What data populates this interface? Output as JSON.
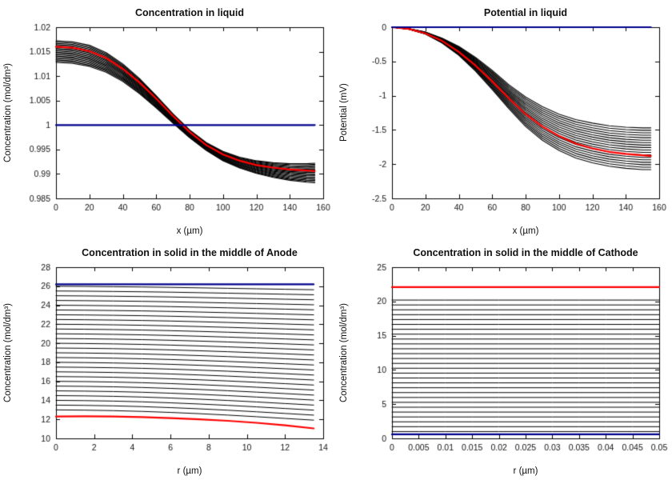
{
  "figure": {
    "background": "#ffffff"
  },
  "chart_data": [
    {
      "id": "concentration-in-liquid",
      "type": "line",
      "title": "Concentration in liquid",
      "xlabel": "x (µm)",
      "ylabel": "Concentration (mol/dm³)",
      "xlim": [
        0,
        160
      ],
      "ylim": [
        0.985,
        1.02
      ],
      "xticks": [
        0,
        20,
        40,
        60,
        80,
        100,
        120,
        140,
        160
      ],
      "xtick_labels": [
        "0",
        "20",
        "40",
        "60",
        "80",
        "100",
        "120",
        "140",
        "160"
      ],
      "yticks": [
        0.985,
        0.99,
        0.995,
        1,
        1.005,
        1.01,
        1.015,
        1.02
      ],
      "ytick_labels": [
        "0.985",
        "0.99",
        "0.995",
        "1",
        "1.005",
        "1.01",
        "1.015",
        "1.02"
      ],
      "x": [
        0,
        10,
        20,
        30,
        40,
        50,
        60,
        70,
        80,
        90,
        100,
        110,
        120,
        130,
        140,
        150,
        155
      ],
      "family": {
        "name": "time-step-curves",
        "color": "#000000",
        "width": 1.1,
        "count": 18,
        "upper": [
          1.0172,
          1.017,
          1.0163,
          1.0148,
          1.0125,
          1.0095,
          1.006,
          1.0023,
          0.999,
          0.9964,
          0.9946,
          0.9934,
          0.9927,
          0.9923,
          0.9921,
          0.9921,
          0.9922
        ],
        "lower": [
          1.0128,
          1.0126,
          1.012,
          1.0108,
          1.0089,
          1.0064,
          1.0035,
          1.0004,
          0.9974,
          0.9948,
          0.9927,
          0.9912,
          0.9901,
          0.9893,
          0.9887,
          0.9883,
          0.9882
        ]
      },
      "series": [
        {
          "name": "red-curve",
          "color": "#ff0000",
          "width": 2.2,
          "y": [
            1.016,
            1.0158,
            1.0151,
            1.0137,
            1.0115,
            1.0087,
            1.0054,
            1.0019,
            0.9986,
            0.9959,
            0.994,
            0.9927,
            0.9918,
            0.9913,
            0.9909,
            0.9907,
            0.9906
          ]
        },
        {
          "name": "blue-line",
          "color": "#00008B",
          "width": 2.2,
          "y": [
            1,
            1,
            1,
            1,
            1,
            1,
            1,
            1,
            1,
            1,
            1,
            1,
            1,
            1,
            1,
            1,
            1
          ]
        }
      ]
    },
    {
      "id": "potential-in-liquid",
      "type": "line",
      "title": "Potential in liquid",
      "xlabel": "x (µm)",
      "ylabel": "Potential (mV)",
      "xlim": [
        0,
        160
      ],
      "ylim": [
        -2.5,
        0
      ],
      "xticks": [
        0,
        20,
        40,
        60,
        80,
        100,
        120,
        140,
        160
      ],
      "xtick_labels": [
        "0",
        "20",
        "40",
        "60",
        "80",
        "100",
        "120",
        "140",
        "160"
      ],
      "yticks": [
        -2.5,
        -2,
        -1.5,
        -1,
        -0.5,
        0
      ],
      "ytick_labels": [
        "-2.5",
        "-2",
        "-1.5",
        "-1",
        "-0.5",
        "0"
      ],
      "x": [
        0,
        10,
        20,
        30,
        40,
        50,
        60,
        70,
        80,
        90,
        100,
        110,
        120,
        130,
        140,
        150,
        155
      ],
      "family": {
        "name": "time-step-curves",
        "color": "#000000",
        "width": 1.1,
        "count": 18,
        "upper": [
          0,
          -0.02,
          -0.07,
          -0.16,
          -0.28,
          -0.44,
          -0.63,
          -0.84,
          -1.02,
          -1.16,
          -1.27,
          -1.35,
          -1.4,
          -1.44,
          -1.46,
          -1.47,
          -1.47
        ],
        "lower": [
          0,
          -0.03,
          -0.1,
          -0.23,
          -0.41,
          -0.64,
          -0.91,
          -1.19,
          -1.45,
          -1.65,
          -1.8,
          -1.91,
          -1.98,
          -2.03,
          -2.06,
          -2.08,
          -2.08
        ]
      },
      "series": [
        {
          "name": "red-curve",
          "color": "#ff0000",
          "width": 2.2,
          "y": [
            0,
            -0.025,
            -0.09,
            -0.2,
            -0.36,
            -0.56,
            -0.79,
            -1.04,
            -1.27,
            -1.45,
            -1.59,
            -1.7,
            -1.77,
            -1.82,
            -1.85,
            -1.87,
            -1.88
          ]
        },
        {
          "name": "blue-line",
          "color": "#00008B",
          "width": 2.2,
          "y": [
            0,
            0,
            0,
            0,
            0,
            0,
            0,
            0,
            0,
            0,
            0,
            0,
            0,
            0,
            0,
            0,
            0
          ]
        }
      ]
    },
    {
      "id": "concentration-solid-anode",
      "type": "line",
      "title": "Concentration in solid in the middle of Anode",
      "xlabel": "r (µm)",
      "ylabel": "Concentration (mol/dm³)",
      "xlim": [
        0,
        14
      ],
      "ylim": [
        10,
        28
      ],
      "xticks": [
        0,
        2,
        4,
        6,
        8,
        10,
        12,
        14
      ],
      "xtick_labels": [
        "0",
        "2",
        "4",
        "6",
        "8",
        "10",
        "12",
        "14"
      ],
      "yticks": [
        10,
        12,
        14,
        16,
        18,
        20,
        22,
        24,
        26,
        28
      ],
      "ytick_labels": [
        "10",
        "12",
        "14",
        "16",
        "18",
        "20",
        "22",
        "24",
        "26",
        "28"
      ],
      "x": [
        0,
        1.5,
        3,
        4.5,
        6,
        7.5,
        9,
        10.5,
        12,
        13.5
      ],
      "family": {
        "name": "time-step-curves",
        "color": "#000000",
        "width": 1,
        "count": 27,
        "upper": [
          26,
          25.98,
          25.95,
          25.92,
          25.88,
          25.83,
          25.78,
          25.73,
          25.68,
          25.63
        ],
        "lower": [
          13,
          12.97,
          12.92,
          12.84,
          12.73,
          12.6,
          12.45,
          12.28,
          12.1,
          11.92
        ]
      },
      "series": [
        {
          "name": "red-curve",
          "color": "#ff0000",
          "width": 2.2,
          "y": [
            12.3,
            12.32,
            12.3,
            12.24,
            12.14,
            12.01,
            11.85,
            11.64,
            11.38,
            11.05
          ]
        },
        {
          "name": "blue-line",
          "color": "#00008B",
          "width": 2.2,
          "y": [
            26.2,
            26.2,
            26.2,
            26.2,
            26.2,
            26.2,
            26.2,
            26.2,
            26.2,
            26.2
          ]
        }
      ]
    },
    {
      "id": "concentration-solid-cathode",
      "type": "line",
      "title": "Concentration in solid in the middle of Cathode",
      "xlabel": "r (µm)",
      "ylabel": "Concentration (mol/dm³)",
      "xlim": [
        0,
        0.05
      ],
      "ylim": [
        0,
        25
      ],
      "xticks": [
        0,
        0.005,
        0.01,
        0.015,
        0.02,
        0.025,
        0.03,
        0.035,
        0.04,
        0.045,
        0.05
      ],
      "xtick_labels": [
        "0",
        "0.005",
        "0.01",
        "0.015",
        "0.02",
        "0.025",
        "0.03",
        "0.035",
        "0.04",
        "0.045",
        "0.05"
      ],
      "yticks": [
        0,
        5,
        10,
        15,
        20,
        25
      ],
      "ytick_labels": [
        "0",
        "5",
        "10",
        "15",
        "20",
        "25"
      ],
      "x": [
        0,
        0.005,
        0.01,
        0.015,
        0.02,
        0.025,
        0.03,
        0.035,
        0.04,
        0.045,
        0.05
      ],
      "family": {
        "name": "time-step-curves",
        "color": "#000000",
        "width": 1,
        "count": 28,
        "upper": [
          20.2,
          20.2,
          20.2,
          20.2,
          20.2,
          20.2,
          20.2,
          20.2,
          20.2,
          20.2,
          20.2
        ],
        "lower": [
          1,
          1,
          1,
          1,
          1,
          1,
          1,
          1,
          1,
          1,
          1
        ]
      },
      "series": [
        {
          "name": "red-line",
          "color": "#ff0000",
          "width": 2.2,
          "y": [
            22.1,
            22.1,
            22.1,
            22.1,
            22.1,
            22.1,
            22.1,
            22.1,
            22.1,
            22.1,
            22.1
          ]
        },
        {
          "name": "blue-line",
          "color": "#00008B",
          "width": 2.2,
          "y": [
            0.6,
            0.6,
            0.6,
            0.6,
            0.6,
            0.6,
            0.6,
            0.6,
            0.6,
            0.6,
            0.6
          ]
        }
      ]
    }
  ]
}
